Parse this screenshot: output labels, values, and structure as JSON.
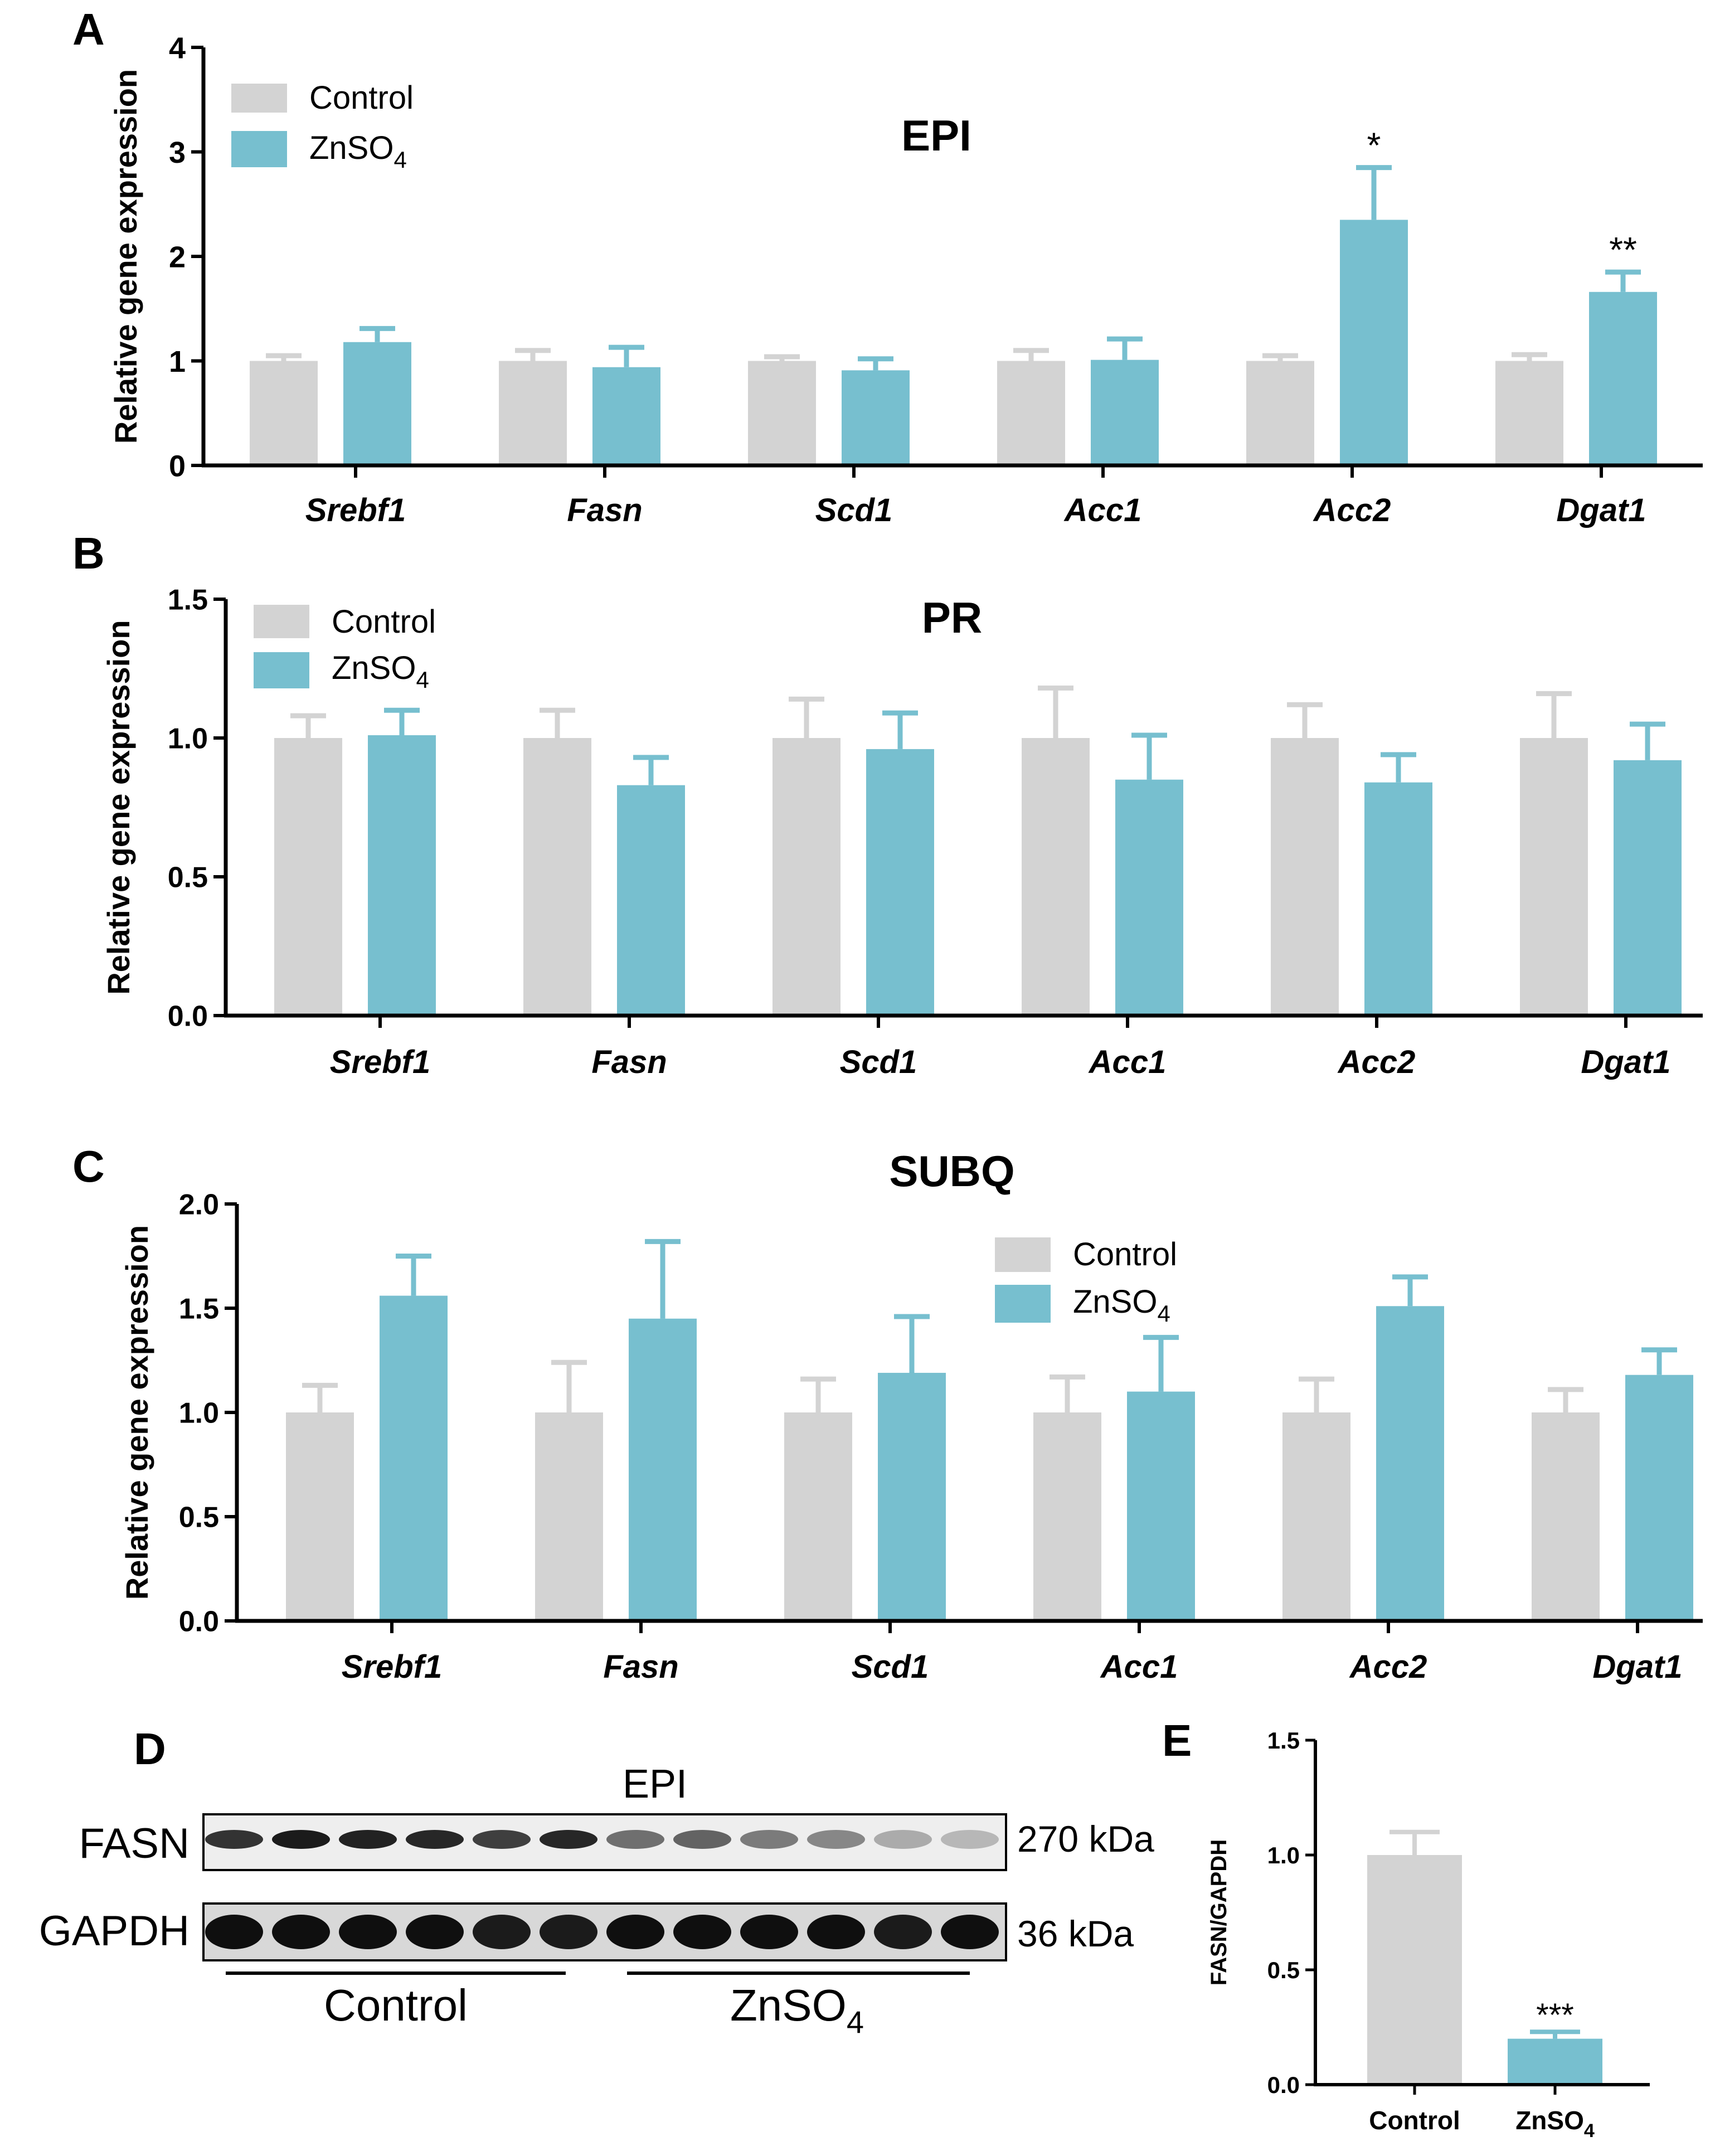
{
  "colors": {
    "control": "#d3d3d3",
    "znso4": "#77bfcf",
    "axis": "#000000"
  },
  "legend": {
    "control": "Control",
    "znso4_base": "ZnSO",
    "znso4_sub": "4"
  },
  "chart_data": [
    {
      "panel": "A",
      "type": "bar",
      "title": "EPI",
      "ylabel": "Relative gene expression",
      "ylim": [
        0,
        4
      ],
      "yticks": [
        "0",
        "1",
        "2",
        "3",
        "4"
      ],
      "categories": [
        "Srebf1",
        "Fasn",
        "Scd1",
        "Acc1",
        "Acc2",
        "Dgat1"
      ],
      "series": [
        {
          "name": "Control",
          "values": [
            1.0,
            1.0,
            1.0,
            1.0,
            1.0,
            1.0
          ],
          "errors": [
            0.05,
            0.1,
            0.04,
            0.1,
            0.05,
            0.06
          ]
        },
        {
          "name": "ZnSO4",
          "values": [
            1.18,
            0.94,
            0.91,
            1.01,
            2.35,
            1.66
          ],
          "errors": [
            0.13,
            0.19,
            0.11,
            0.2,
            0.5,
            0.19
          ]
        }
      ],
      "annotations": [
        "",
        "",
        "",
        "",
        "*",
        "**"
      ],
      "legend_position": "top-left"
    },
    {
      "panel": "B",
      "type": "bar",
      "title": "PR",
      "ylabel": "Relative gene expression",
      "ylim": [
        0,
        1.5
      ],
      "yticks": [
        "0.0",
        "0.5",
        "1.0",
        "1.5"
      ],
      "categories": [
        "Srebf1",
        "Fasn",
        "Scd1",
        "Acc1",
        "Acc2",
        "Dgat1"
      ],
      "series": [
        {
          "name": "Control",
          "values": [
            1.0,
            1.0,
            1.0,
            1.0,
            1.0,
            1.0
          ],
          "errors": [
            0.08,
            0.1,
            0.14,
            0.18,
            0.12,
            0.16
          ]
        },
        {
          "name": "ZnSO4",
          "values": [
            1.01,
            0.83,
            0.96,
            0.85,
            0.84,
            0.92
          ],
          "errors": [
            0.09,
            0.1,
            0.13,
            0.16,
            0.1,
            0.13
          ]
        }
      ],
      "annotations": [
        "",
        "",
        "",
        "",
        "",
        ""
      ],
      "legend_position": "top-left"
    },
    {
      "panel": "C",
      "type": "bar",
      "title": "SUBQ",
      "ylabel": "Relative gene expression",
      "ylim": [
        0,
        2.0
      ],
      "yticks": [
        "0.0",
        "0.5",
        "1.0",
        "1.5",
        "2.0"
      ],
      "categories": [
        "Srebf1",
        "Fasn",
        "Scd1",
        "Acc1",
        "Acc2",
        "Dgat1"
      ],
      "series": [
        {
          "name": "Control",
          "values": [
            1.0,
            1.0,
            1.0,
            1.0,
            1.0,
            1.0
          ],
          "errors": [
            0.13,
            0.24,
            0.16,
            0.17,
            0.16,
            0.11
          ]
        },
        {
          "name": "ZnSO4",
          "values": [
            1.56,
            1.45,
            1.19,
            1.1,
            1.51,
            1.18
          ],
          "errors": [
            0.19,
            0.37,
            0.27,
            0.26,
            0.14,
            0.12
          ]
        }
      ],
      "annotations": [
        "",
        "",
        "",
        "",
        "",
        ""
      ],
      "legend_position": "top-right"
    },
    {
      "panel": "E",
      "type": "bar",
      "title": "",
      "ylabel": "FASN/GAPDH",
      "ylim": [
        0,
        1.5
      ],
      "yticks": [
        "0.0",
        "0.5",
        "1.0",
        "1.5"
      ],
      "categories": [
        "Control",
        "ZnSO4"
      ],
      "values": [
        1.0,
        0.2
      ],
      "errors": [
        0.1,
        0.03
      ],
      "annotations": [
        "",
        "***"
      ]
    }
  ],
  "blot": {
    "panel": "D",
    "title": "EPI",
    "bands": [
      {
        "name": "FASN",
        "size": "270 kDa",
        "intensities": [
          0.85,
          0.95,
          0.92,
          0.9,
          0.8,
          0.9,
          0.6,
          0.65,
          0.55,
          0.5,
          0.35,
          0.3
        ]
      },
      {
        "name": "GAPDH",
        "size": "36 kDa",
        "intensities": [
          1,
          1,
          1,
          1,
          0.95,
          0.95,
          1,
          1,
          1,
          1,
          0.95,
          1
        ]
      }
    ],
    "groups": [
      "Control",
      "ZnSO"
    ],
    "group_sub": "4"
  }
}
